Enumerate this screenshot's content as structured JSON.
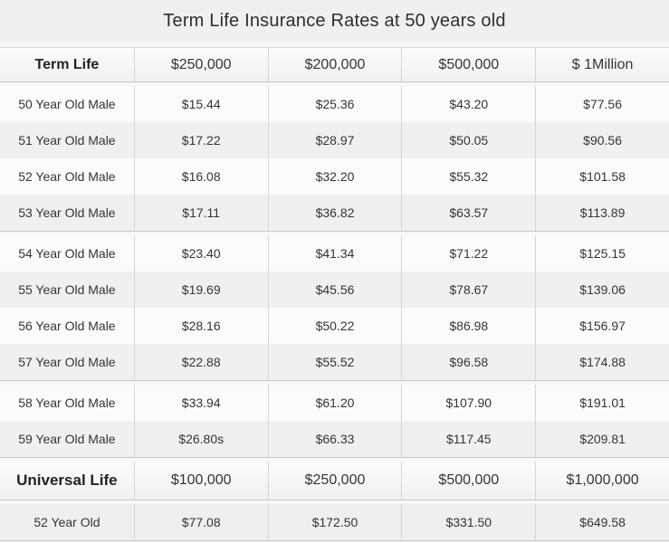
{
  "title": "Term Life Insurance Rates at 50 years old",
  "colors": {
    "title_band_bg": "#eff0f1",
    "page_bg": "#f7f7f8",
    "header_gradient_top": "#fbfbfc",
    "header_gradient_bottom": "#f1f1f3",
    "row_odd_bg": "#fbfbfc",
    "row_even_bg": "#f0f0f1",
    "section_divider": "#c9c9cc",
    "column_border": "#d5d5d8",
    "text": "#333536"
  },
  "chart_data": {
    "type": "table",
    "title": "Term Life Insurance Rates at 50 years old",
    "term_header": [
      "Term Life",
      "$250,000",
      "$200,000",
      "$500,000",
      "$ 1Million"
    ],
    "term_groups": [
      [
        [
          "50 Year Old Male",
          "$15.44",
          "$25.36",
          "$43.20",
          "$77.56"
        ],
        [
          "51 Year Old Male",
          "$17.22",
          "$28.97",
          "$50.05",
          "$90.56"
        ],
        [
          "52 Year Old Male",
          "$16.08",
          "$32.20",
          "$55.32",
          "$101.58"
        ],
        [
          "53 Year Old Male",
          "$17.11",
          "$36.82",
          "$63.57",
          "$113.89"
        ]
      ],
      [
        [
          "54 Year Old Male",
          "$23.40",
          "$41.34",
          "$71.22",
          "$125.15"
        ],
        [
          "55 Year Old Male",
          "$19.69",
          "$45.56",
          "$78.67",
          "$139.06"
        ],
        [
          "56 Year Old Male",
          "$28.16",
          "$50.22",
          "$86.98",
          "$156.97"
        ],
        [
          "57 Year Old Male",
          "$22.88",
          "$55.52",
          "$96.58",
          "$174.88"
        ]
      ],
      [
        [
          "58 Year Old Male",
          "$33.94",
          "$61.20",
          "$107.90",
          "$191.01"
        ],
        [
          "59 Year Old Male",
          "$26.80s",
          "$66.33",
          "$117.45",
          "$209.81"
        ]
      ]
    ],
    "universal_header": [
      "Universal Life",
      "$100,000",
      "$250,000",
      "$500,000",
      "$1,000,000"
    ],
    "universal_rows": [
      [
        "52 Year Old",
        "$77.08",
        "$172.50",
        "$331.50",
        "$649.58"
      ]
    ]
  }
}
